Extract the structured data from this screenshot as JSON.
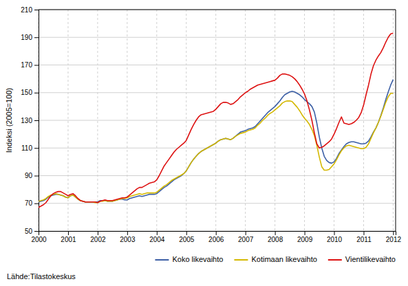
{
  "chart_data": {
    "type": "line",
    "ylabel": "Indeksi (2005=100)",
    "annotations": [
      "Lähde:Tilastokeskus"
    ],
    "xlim": [
      2000.0,
      2012.083
    ],
    "xticks": [
      2000,
      2001,
      2002,
      2003,
      2004,
      2005,
      2006,
      2007,
      2008,
      2009,
      2010,
      2011,
      2012
    ],
    "ylim": [
      50,
      210
    ],
    "yticks": [
      50,
      70,
      90,
      110,
      130,
      150,
      170,
      190,
      210
    ],
    "grid": true,
    "legend": "lower right",
    "x": [
      2000,
      2000.0833,
      2000.1667,
      2000.25,
      2000.3333,
      2000.4167,
      2000.5,
      2000.5833,
      2000.6667,
      2000.75,
      2000.8333,
      2000.9167,
      2001,
      2001.0833,
      2001.1667,
      2001.25,
      2001.3333,
      2001.4167,
      2001.5,
      2001.5833,
      2001.6667,
      2001.75,
      2001.8333,
      2001.9167,
      2002,
      2002.0833,
      2002.1667,
      2002.25,
      2002.3333,
      2002.4167,
      2002.5,
      2002.5833,
      2002.6667,
      2002.75,
      2002.8333,
      2002.9167,
      2003,
      2003.0833,
      2003.1667,
      2003.25,
      2003.3333,
      2003.4167,
      2003.5,
      2003.5833,
      2003.6667,
      2003.75,
      2003.8333,
      2003.9167,
      2004,
      2004.0833,
      2004.1667,
      2004.25,
      2004.3333,
      2004.4167,
      2004.5,
      2004.5833,
      2004.6667,
      2004.75,
      2004.8333,
      2004.9167,
      2005,
      2005.0833,
      2005.1667,
      2005.25,
      2005.3333,
      2005.4167,
      2005.5,
      2005.5833,
      2005.6667,
      2005.75,
      2005.8333,
      2005.9167,
      2006,
      2006.0833,
      2006.1667,
      2006.25,
      2006.3333,
      2006.4167,
      2006.5,
      2006.5833,
      2006.6667,
      2006.75,
      2006.8333,
      2006.9167,
      2007,
      2007.0833,
      2007.1667,
      2007.25,
      2007.3333,
      2007.4167,
      2007.5,
      2007.5833,
      2007.6667,
      2007.75,
      2007.8333,
      2007.9167,
      2008,
      2008.0833,
      2008.1667,
      2008.25,
      2008.3333,
      2008.4167,
      2008.5,
      2008.5833,
      2008.6667,
      2008.75,
      2008.8333,
      2008.9167,
      2009,
      2009.0833,
      2009.1667,
      2009.25,
      2009.3333,
      2009.4167,
      2009.5,
      2009.5833,
      2009.6667,
      2009.75,
      2009.8333,
      2009.9167,
      2010,
      2010.0833,
      2010.1667,
      2010.25,
      2010.3333,
      2010.4167,
      2010.5,
      2010.5833,
      2010.6667,
      2010.75,
      2010.8333,
      2010.9167,
      2011,
      2011.0833,
      2011.1667,
      2011.25,
      2011.3333,
      2011.4167,
      2011.5,
      2011.5833,
      2011.6667,
      2011.75,
      2011.8333,
      2011.9167,
      2012
    ],
    "series": [
      {
        "name": "Koko likevaihto",
        "color": "#3c5fa5",
        "values": [
          71.0,
          71.5,
          72.0,
          73.0,
          74.5,
          75.5,
          76.0,
          76.5,
          76.5,
          76.0,
          75.5,
          74.5,
          74.0,
          75.5,
          76.0,
          74.5,
          73.0,
          72.0,
          71.5,
          71.0,
          71.0,
          71.0,
          71.0,
          71.0,
          71.0,
          72.0,
          72.0,
          72.0,
          71.5,
          71.5,
          71.5,
          72.0,
          72.5,
          73.0,
          73.0,
          72.5,
          72.5,
          73.5,
          74.0,
          74.5,
          75.0,
          75.5,
          75.0,
          75.5,
          76.0,
          76.5,
          76.5,
          76.5,
          77.0,
          78.5,
          80.0,
          81.5,
          82.5,
          84.0,
          85.5,
          87.0,
          88.0,
          89.0,
          90.0,
          91.5,
          93.5,
          96.5,
          99.5,
          102.0,
          104.0,
          106.0,
          107.5,
          108.5,
          109.5,
          110.5,
          111.5,
          112.5,
          113.5,
          115.0,
          116.0,
          116.5,
          117.0,
          116.5,
          116.0,
          117.0,
          118.5,
          120.0,
          121.5,
          122.0,
          122.5,
          123.5,
          124.0,
          124.5,
          125.5,
          127.5,
          129.5,
          131.5,
          133.5,
          135.5,
          137.0,
          138.5,
          140.0,
          142.0,
          144.0,
          146.5,
          148.5,
          149.5,
          150.5,
          151.0,
          150.5,
          149.5,
          148.5,
          147.0,
          145.0,
          143.5,
          142.0,
          140.0,
          136.0,
          128.0,
          118.0,
          110.0,
          104.0,
          101.0,
          99.5,
          99.0,
          100.0,
          102.5,
          106.0,
          108.5,
          111.0,
          113.0,
          114.0,
          114.5,
          114.5,
          114.0,
          113.5,
          113.0,
          113.0,
          113.5,
          115.0,
          118.0,
          121.5,
          124.5,
          128.5,
          133.5,
          139.0,
          145.0,
          150.5,
          155.5,
          159.5
        ]
      },
      {
        "name": "Kotimaan likevaihto",
        "color": "#d4b800",
        "values": [
          71.5,
          72.0,
          72.5,
          73.5,
          75.0,
          76.0,
          76.5,
          77.0,
          76.5,
          76.0,
          75.5,
          74.5,
          74.0,
          75.5,
          76.0,
          74.5,
          73.0,
          72.0,
          71.5,
          71.0,
          71.0,
          71.0,
          71.0,
          70.5,
          70.5,
          71.5,
          71.5,
          72.0,
          71.5,
          71.5,
          71.5,
          72.0,
          72.5,
          73.0,
          73.5,
          73.5,
          74.0,
          75.0,
          75.5,
          76.0,
          76.5,
          77.0,
          76.5,
          77.0,
          77.5,
          77.5,
          77.5,
          77.5,
          78.0,
          79.5,
          81.0,
          82.5,
          83.5,
          85.0,
          86.5,
          87.5,
          88.5,
          89.5,
          90.5,
          91.5,
          93.5,
          96.5,
          99.5,
          102.0,
          104.0,
          106.0,
          107.5,
          108.5,
          109.5,
          110.5,
          111.5,
          112.5,
          113.5,
          115.0,
          116.0,
          116.5,
          117.0,
          116.5,
          116.0,
          117.0,
          118.5,
          119.5,
          120.5,
          121.0,
          121.5,
          122.5,
          123.0,
          123.5,
          124.5,
          126.5,
          128.0,
          130.0,
          131.5,
          133.5,
          135.0,
          136.0,
          137.5,
          139.0,
          140.5,
          142.5,
          143.5,
          144.0,
          144.0,
          143.5,
          141.5,
          139.5,
          137.0,
          134.0,
          131.5,
          129.5,
          127.0,
          123.5,
          119.0,
          112.0,
          103.5,
          96.5,
          94.0,
          94.0,
          94.5,
          96.5,
          98.5,
          101.5,
          105.0,
          108.0,
          110.0,
          111.5,
          112.0,
          111.5,
          111.0,
          110.5,
          110.0,
          109.5,
          109.5,
          110.5,
          113.0,
          117.0,
          121.0,
          124.5,
          128.5,
          133.0,
          138.0,
          143.0,
          147.0,
          149.5,
          149.5
        ]
      },
      {
        "name": "Vientilikevaihto",
        "color": "#dd1111",
        "values": [
          67.0,
          68.0,
          69.0,
          70.5,
          73.0,
          75.5,
          77.0,
          78.0,
          78.5,
          78.5,
          77.5,
          76.5,
          75.5,
          76.5,
          77.0,
          75.5,
          73.5,
          72.0,
          71.5,
          71.0,
          71.0,
          71.0,
          71.0,
          71.0,
          70.5,
          71.5,
          72.0,
          72.5,
          72.0,
          72.0,
          72.0,
          72.5,
          73.0,
          73.5,
          74.0,
          74.0,
          74.5,
          76.0,
          77.5,
          79.0,
          80.5,
          81.5,
          81.5,
          82.5,
          83.5,
          84.5,
          85.0,
          85.5,
          87.0,
          90.0,
          93.5,
          97.0,
          99.5,
          102.0,
          104.5,
          107.0,
          109.0,
          110.5,
          112.0,
          113.5,
          115.5,
          119.5,
          123.5,
          127.0,
          130.0,
          132.5,
          134.0,
          134.5,
          135.0,
          135.5,
          136.0,
          136.5,
          138.0,
          140.0,
          142.0,
          143.0,
          143.0,
          142.5,
          141.5,
          142.0,
          143.5,
          145.0,
          147.0,
          148.5,
          150.0,
          151.0,
          152.5,
          153.5,
          154.5,
          155.5,
          156.0,
          156.5,
          157.0,
          157.5,
          158.0,
          158.5,
          159.0,
          160.5,
          162.5,
          163.5,
          163.5,
          163.0,
          162.5,
          161.5,
          160.0,
          158.0,
          155.5,
          152.5,
          149.0,
          144.0,
          137.5,
          130.0,
          121.0,
          113.0,
          110.0,
          110.5,
          111.5,
          113.0,
          114.5,
          116.5,
          120.0,
          124.0,
          128.5,
          132.5,
          128.0,
          127.5,
          127.0,
          127.5,
          128.5,
          130.0,
          132.0,
          135.5,
          141.0,
          148.5,
          155.5,
          163.5,
          169.5,
          173.5,
          176.5,
          179.0,
          182.5,
          186.5,
          190.0,
          192.5,
          193.0
        ]
      }
    ]
  }
}
